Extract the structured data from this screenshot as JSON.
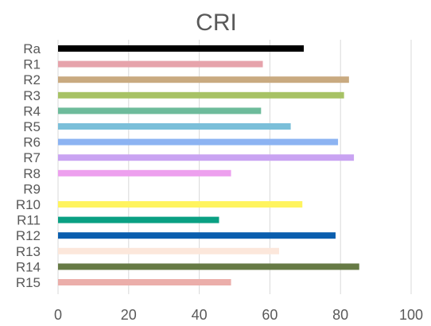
{
  "chart_data": {
    "type": "bar",
    "orientation": "horizontal",
    "title": "CRI",
    "xlabel": "",
    "ylabel": "",
    "xlim": [
      0,
      100
    ],
    "x_ticks": [
      "0",
      "20",
      "40",
      "60",
      "80",
      "100"
    ],
    "grid": "vertical",
    "categories": [
      "Ra",
      "R1",
      "R2",
      "R3",
      "R4",
      "R5",
      "R6",
      "R7",
      "R8",
      "R9",
      "R10",
      "R11",
      "R12",
      "R13",
      "R14",
      "R15"
    ],
    "values": [
      69.6,
      58,
      82.4,
      81,
      57.5,
      65.9,
      79.3,
      83.8,
      49,
      0,
      69.2,
      45.6,
      78.6,
      62.6,
      85.3,
      49
    ],
    "colors": [
      "#000000",
      "#E6A3AB",
      "#C9AA80",
      "#A7C265",
      "#6DBB9B",
      "#7BBFD9",
      "#8CB3F2",
      "#C9A3F2",
      "#EDA0EE",
      "#E7E6E6",
      "#FFF45E",
      "#0AA083",
      "#0A5EAE",
      "#FCE7DB",
      "#667A45",
      "#EBAEAA"
    ]
  }
}
